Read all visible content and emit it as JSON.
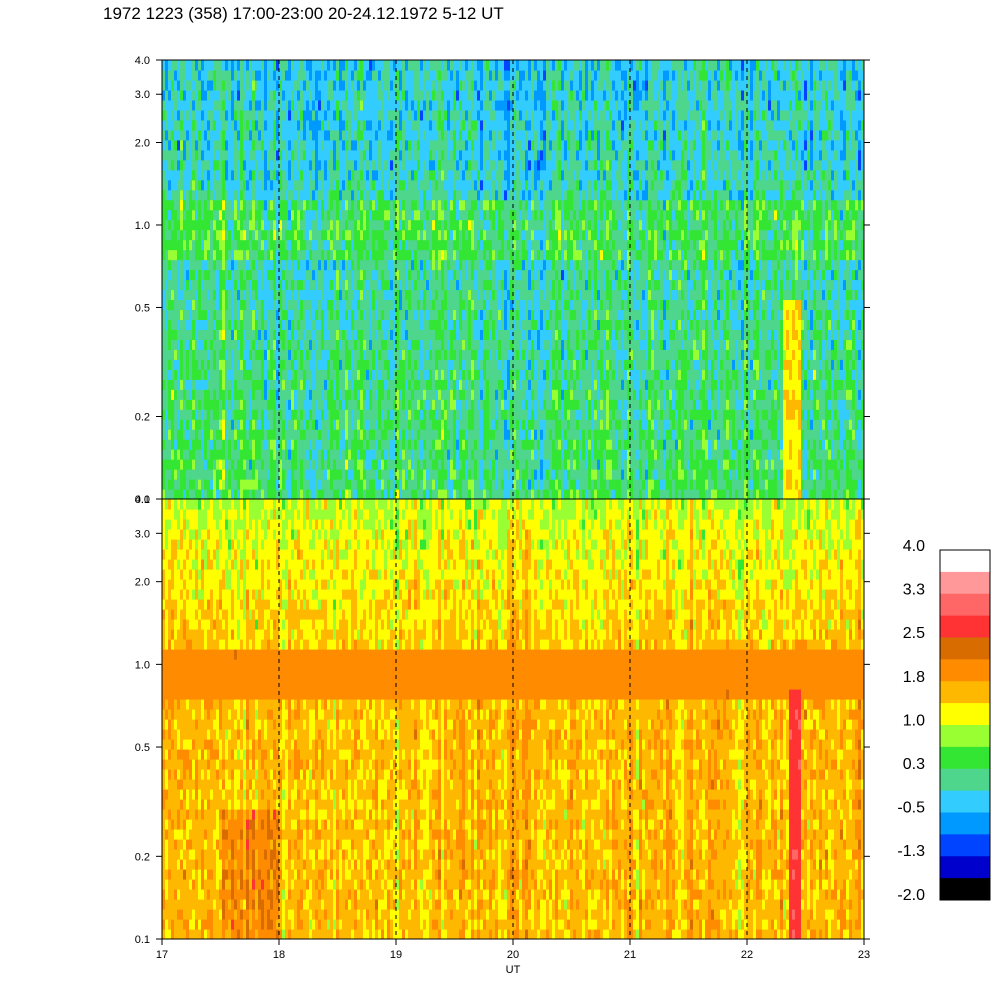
{
  "title": "1972 1223 (358) 17:00-23:00 20-24.12.1972  5-12 UT",
  "chart_data": [
    {
      "type": "heatmap",
      "panel": "top",
      "title": "",
      "xlabel": "",
      "ylabel": "",
      "xlim": [
        17,
        23
      ],
      "ylim": [
        0.1,
        4.0
      ],
      "yscale": "log",
      "x_ticks": [
        17,
        18,
        19,
        20,
        21,
        22,
        23
      ],
      "y_ticks": [
        "0.1",
        "0.2",
        "0.5",
        "1.0",
        "2.0",
        "3.0",
        "4.0"
      ],
      "y_tick_values": [
        0.1,
        0.2,
        0.5,
        1.0,
        2.0,
        3.0,
        4.0
      ],
      "vertical_dashed_lines": [
        18,
        19,
        20,
        21,
        22
      ],
      "dominant_level": 0.3,
      "notes_levels": {
        "low_band": 0.3,
        "mid_band": 0.0,
        "high_band": -0.5,
        "burst_at_22_4": 1.4
      }
    },
    {
      "type": "heatmap",
      "panel": "bottom",
      "title": "",
      "xlabel": "UT",
      "ylabel": "",
      "xlim": [
        17,
        23
      ],
      "ylim": [
        0.1,
        4.0
      ],
      "yscale": "log",
      "x_ticks": [
        17,
        18,
        19,
        20,
        21,
        22,
        23
      ],
      "x_tick_labels": [
        "17",
        "18",
        "19",
        "20",
        "21",
        "22",
        "23"
      ],
      "y_ticks": [
        "0.1",
        "0.2",
        "0.5",
        "1.0",
        "2.0",
        "3.0",
        "4.0"
      ],
      "y_tick_values": [
        0.1,
        0.2,
        0.5,
        1.0,
        2.0,
        3.0,
        4.0
      ],
      "vertical_dashed_lines": [
        18,
        19,
        20,
        21,
        22
      ],
      "dominant_level": 1.6,
      "band_0_75_to_0_98": 1.9,
      "burst_at_22_4": 2.8
    }
  ],
  "colorbar": {
    "labels": [
      "4.0",
      "3.3",
      "2.5",
      "1.8",
      "1.0",
      "0.3",
      "-0.5",
      "-1.3",
      "-2.0"
    ],
    "colors": [
      "#ffffff",
      "#ff9999",
      "#ff6666",
      "#ff3333",
      "#d96c00",
      "#ff8c00",
      "#ffb800",
      "#ffff00",
      "#99ff33",
      "#33e633",
      "#4dd68c",
      "#33ccff",
      "#0099ff",
      "#0044ff",
      "#0000cc",
      "#000000"
    ]
  }
}
